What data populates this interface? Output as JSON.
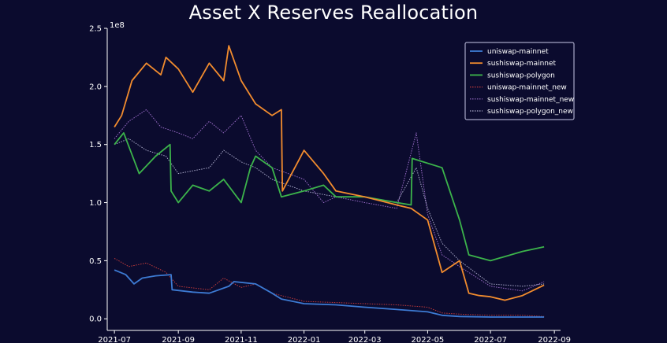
{
  "chart_data": {
    "type": "line",
    "title": "Asset X Reserves Reallocation",
    "xlabel": "",
    "ylabel": "",
    "y_multiplier": "1e8",
    "xlim": [
      "2021-06-24",
      "2022-09-07"
    ],
    "ylim": [
      -0.1,
      2.5
    ],
    "x_ticks": [
      "2021-07",
      "2021-09",
      "2021-11",
      "2022-01",
      "2022-03",
      "2022-05",
      "2022-07",
      "2022-09"
    ],
    "y_ticks": [
      "0.0",
      "0.5",
      "1.0",
      "1.5",
      "2.0",
      "2.5"
    ],
    "y_tick_values": [
      0.0,
      0.5,
      1.0,
      1.5,
      2.0,
      2.5
    ],
    "legend_position": "top-right",
    "grid": false,
    "series": [
      {
        "name": "uniswap-mainnet",
        "color": "#3d7bd4",
        "style": "solid",
        "x": [
          "2021-07-01",
          "2021-07-12",
          "2021-07-20",
          "2021-07-28",
          "2021-08-10",
          "2021-08-25",
          "2021-08-26",
          "2021-09-15",
          "2021-10-01",
          "2021-10-20",
          "2021-10-25",
          "2021-11-15",
          "2021-12-01",
          "2021-12-10",
          "2022-01-01",
          "2022-02-01",
          "2022-03-01",
          "2022-04-01",
          "2022-05-01",
          "2022-05-15",
          "2022-06-01",
          "2022-07-01",
          "2022-08-01",
          "2022-08-22"
        ],
        "values": [
          0.42,
          0.38,
          0.3,
          0.35,
          0.37,
          0.38,
          0.25,
          0.23,
          0.22,
          0.28,
          0.32,
          0.3,
          0.22,
          0.17,
          0.13,
          0.12,
          0.1,
          0.08,
          0.06,
          0.03,
          0.02,
          0.015,
          0.015,
          0.015
        ]
      },
      {
        "name": "sushiswap-mainnet",
        "color": "#f28c2e",
        "style": "solid",
        "x": [
          "2021-07-01",
          "2021-07-08",
          "2021-07-18",
          "2021-08-01",
          "2021-08-15",
          "2021-08-20",
          "2021-09-01",
          "2021-09-15",
          "2021-10-01",
          "2021-10-15",
          "2021-10-20",
          "2021-11-01",
          "2021-11-15",
          "2021-12-01",
          "2021-12-10",
          "2021-12-11",
          "2022-01-01",
          "2022-01-20",
          "2022-02-01",
          "2022-03-01",
          "2022-04-01",
          "2022-04-15",
          "2022-05-01",
          "2022-05-15",
          "2022-06-01",
          "2022-06-10",
          "2022-06-20",
          "2022-07-01",
          "2022-07-15",
          "2022-08-01",
          "2022-08-22"
        ],
        "values": [
          1.65,
          1.75,
          2.05,
          2.2,
          2.1,
          2.25,
          2.15,
          1.95,
          2.2,
          2.05,
          2.35,
          2.05,
          1.85,
          1.75,
          1.8,
          1.1,
          1.45,
          1.25,
          1.1,
          1.05,
          0.98,
          0.95,
          0.85,
          0.4,
          0.5,
          0.22,
          0.2,
          0.19,
          0.16,
          0.2,
          0.29
        ]
      },
      {
        "name": "sushiswap-polygon",
        "color": "#3cb44b",
        "style": "solid",
        "x": [
          "2021-07-01",
          "2021-07-10",
          "2021-07-25",
          "2021-08-10",
          "2021-08-24",
          "2021-08-25",
          "2021-09-01",
          "2021-09-15",
          "2021-10-01",
          "2021-10-15",
          "2021-11-01",
          "2021-11-10",
          "2021-11-15",
          "2021-12-01",
          "2021-12-10",
          "2022-01-01",
          "2022-01-20",
          "2022-02-01",
          "2022-03-01",
          "2022-04-01",
          "2022-04-15",
          "2022-04-16",
          "2022-05-15",
          "2022-06-01",
          "2022-06-10",
          "2022-07-01",
          "2022-08-01",
          "2022-08-22"
        ],
        "values": [
          1.5,
          1.6,
          1.25,
          1.4,
          1.5,
          1.1,
          1.0,
          1.15,
          1.1,
          1.2,
          1.0,
          1.3,
          1.4,
          1.3,
          1.05,
          1.1,
          1.15,
          1.05,
          1.05,
          1.0,
          0.98,
          1.38,
          1.3,
          0.85,
          0.55,
          0.5,
          0.58,
          0.62
        ]
      },
      {
        "name": "uniswap-mainnet_new",
        "color": "#c23a3a",
        "style": "dotted",
        "x": [
          "2021-07-01",
          "2021-07-15",
          "2021-08-01",
          "2021-08-20",
          "2021-09-01",
          "2021-10-01",
          "2021-10-15",
          "2021-11-01",
          "2021-11-15",
          "2021-12-01",
          "2022-01-01",
          "2022-02-01",
          "2022-03-01",
          "2022-04-01",
          "2022-05-01",
          "2022-05-15",
          "2022-06-01",
          "2022-07-01",
          "2022-08-01",
          "2022-08-22"
        ],
        "values": [
          0.52,
          0.45,
          0.48,
          0.4,
          0.28,
          0.25,
          0.35,
          0.27,
          0.3,
          0.22,
          0.15,
          0.14,
          0.13,
          0.12,
          0.1,
          0.05,
          0.04,
          0.03,
          0.03,
          0.02
        ]
      },
      {
        "name": "sushiswap-mainnet_new",
        "color": "#9a6cc8",
        "style": "dotted",
        "x": [
          "2021-07-01",
          "2021-07-15",
          "2021-08-01",
          "2021-08-15",
          "2021-09-01",
          "2021-09-15",
          "2021-10-01",
          "2021-10-15",
          "2021-11-01",
          "2021-11-15",
          "2021-12-01",
          "2022-01-01",
          "2022-01-20",
          "2022-02-01",
          "2022-03-01",
          "2022-04-01",
          "2022-04-20",
          "2022-05-01",
          "2022-05-15",
          "2022-06-01",
          "2022-07-01",
          "2022-08-01",
          "2022-08-22"
        ],
        "values": [
          1.55,
          1.7,
          1.8,
          1.65,
          1.6,
          1.55,
          1.7,
          1.6,
          1.75,
          1.45,
          1.3,
          1.2,
          1.0,
          1.05,
          1.0,
          0.95,
          1.6,
          0.9,
          0.55,
          0.45,
          0.28,
          0.24,
          0.32
        ]
      },
      {
        "name": "sushiswap-polygon_new",
        "color": "#a9a9c9",
        "style": "dotted",
        "x": [
          "2021-07-01",
          "2021-07-15",
          "2021-08-01",
          "2021-08-20",
          "2021-09-01",
          "2021-10-01",
          "2021-10-15",
          "2021-11-01",
          "2021-11-15",
          "2021-12-01",
          "2022-01-01",
          "2022-02-01",
          "2022-03-01",
          "2022-04-01",
          "2022-04-20",
          "2022-05-01",
          "2022-05-15",
          "2022-06-01",
          "2022-07-01",
          "2022-08-01",
          "2022-08-22"
        ],
        "values": [
          1.5,
          1.55,
          1.45,
          1.4,
          1.25,
          1.3,
          1.45,
          1.35,
          1.3,
          1.2,
          1.1,
          1.05,
          1.05,
          1.0,
          1.3,
          0.95,
          0.65,
          0.5,
          0.3,
          0.28,
          0.3
        ]
      }
    ]
  }
}
